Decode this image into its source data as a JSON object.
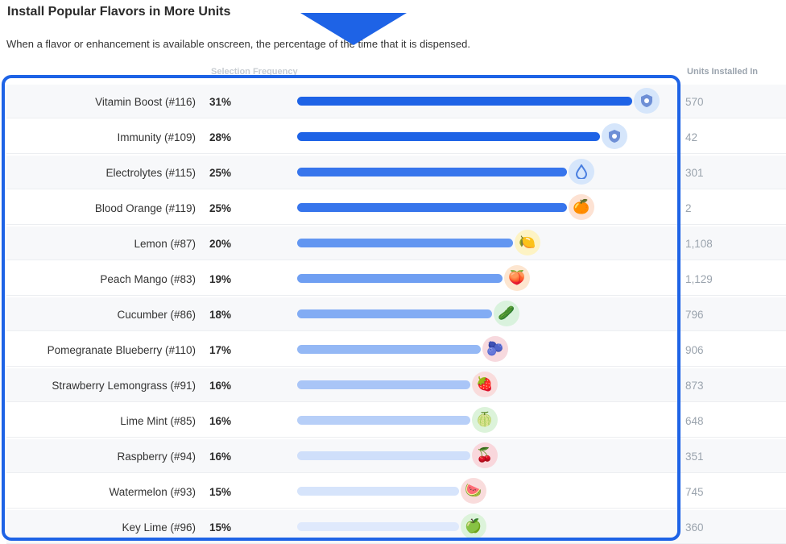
{
  "header": {
    "title": "Install Popular Flavors in More Units",
    "subtitle": "When a flavor or enhancement is available onscreen, the percentage of the time that it is dispensed."
  },
  "columns": {
    "selection": "Selection Frequency",
    "units": "Units Installed In"
  },
  "rows": [
    {
      "name": "Vitamin Boost (#116)",
      "pct_label": "31%",
      "pct": 31,
      "units": "570",
      "icon": "shield-icon",
      "color": "#1e63e6",
      "icon_bg": "#d6e6fb"
    },
    {
      "name": "Immunity (#109)",
      "pct_label": "28%",
      "pct": 28,
      "units": "42",
      "icon": "shield-icon",
      "color": "#1e63e6",
      "icon_bg": "#d6e6fb"
    },
    {
      "name": "Electrolytes (#115)",
      "pct_label": "25%",
      "pct": 25,
      "units": "301",
      "icon": "droplet-icon",
      "color": "#3775ec",
      "icon_bg": "#d6e6fb"
    },
    {
      "name": "Blood Orange (#119)",
      "pct_label": "25%",
      "pct": 25,
      "units": "2",
      "icon": "blood-orange-icon",
      "color": "#3775ec",
      "icon_bg": "#fde2d3"
    },
    {
      "name": "Lemon (#87)",
      "pct_label": "20%",
      "pct": 20,
      "units": "1,108",
      "icon": "lemon-icon",
      "color": "#6296f1",
      "icon_bg": "#fdf3c4"
    },
    {
      "name": "Peach Mango (#83)",
      "pct_label": "19%",
      "pct": 19,
      "units": "1,129",
      "icon": "peach-icon",
      "color": "#6f9ff2",
      "icon_bg": "#fde6d0"
    },
    {
      "name": "Cucumber (#86)",
      "pct_label": "18%",
      "pct": 18,
      "units": "796",
      "icon": "cucumber-icon",
      "color": "#82acf4",
      "icon_bg": "#d9f2dd"
    },
    {
      "name": "Pomegranate Blueberry (#110)",
      "pct_label": "17%",
      "pct": 17,
      "units": "906",
      "icon": "pomegranate-icon",
      "color": "#94b8f5",
      "icon_bg": "#f7d9de"
    },
    {
      "name": "Strawberry Lemongrass (#91)",
      "pct_label": "16%",
      "pct": 16,
      "units": "873",
      "icon": "strawberry-icon",
      "color": "#a9c5f7",
      "icon_bg": "#f9dcdc"
    },
    {
      "name": "Lime Mint (#85)",
      "pct_label": "16%",
      "pct": 16,
      "units": "648",
      "icon": "lime-icon",
      "color": "#b7cff8",
      "icon_bg": "#dcf3da"
    },
    {
      "name": "Raspberry (#94)",
      "pct_label": "16%",
      "pct": 16,
      "units": "351",
      "icon": "raspberry-icon",
      "color": "#cfdffa",
      "icon_bg": "#f9d7dc"
    },
    {
      "name": "Watermelon (#93)",
      "pct_label": "15%",
      "pct": 15,
      "units": "745",
      "icon": "watermelon-icon",
      "color": "#d6e4fb",
      "icon_bg": "#f9dcdc"
    },
    {
      "name": "Key Lime (#96)",
      "pct_label": "15%",
      "pct": 15,
      "units": "360",
      "icon": "key-lime-icon",
      "color": "#dfe9fc",
      "icon_bg": "#dcf3da"
    }
  ]
}
